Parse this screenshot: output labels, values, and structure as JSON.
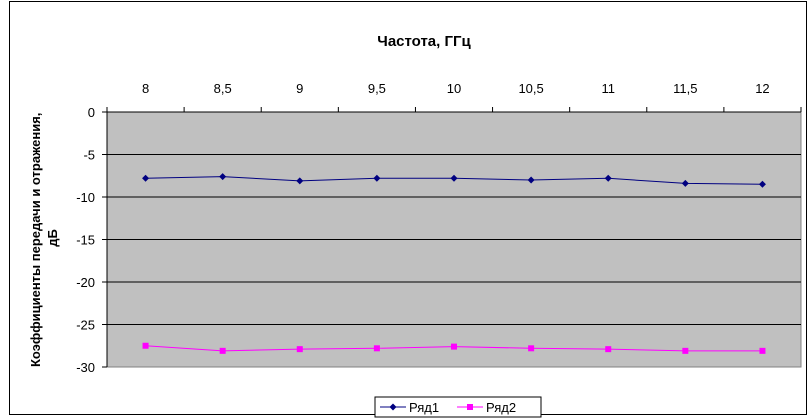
{
  "chart_data": {
    "type": "line",
    "title": "Частота, ГГц",
    "xlabel": "",
    "ylabel": "Коэффициенты передачи и отражения, дБ",
    "ylabel_lines": [
      "Коэффициенты передачи и отражения,",
      "дБ"
    ],
    "categories": [
      "8",
      "8,5",
      "9",
      "9,5",
      "10",
      "10,5",
      "11",
      "11,5",
      "12"
    ],
    "yticks": [
      0,
      -5,
      -10,
      -15,
      -20,
      -25,
      -30
    ],
    "ylim": [
      -30,
      0
    ],
    "x_axis_position": "top",
    "grid": true,
    "legend_position": "bottom",
    "series": [
      {
        "name": "Ряд1",
        "color": "#000080",
        "marker": "diamond",
        "values": [
          -7.8,
          -7.6,
          -8.1,
          -7.8,
          -7.8,
          -8.0,
          -7.8,
          -8.4,
          -8.5
        ]
      },
      {
        "name": "Ряд2",
        "color": "#ff00ff",
        "marker": "square",
        "values": [
          -27.5,
          -28.1,
          -27.9,
          -27.8,
          -27.6,
          -27.8,
          -27.9,
          -28.1,
          -28.1
        ]
      }
    ],
    "plot_background": "#c0c0c0"
  }
}
